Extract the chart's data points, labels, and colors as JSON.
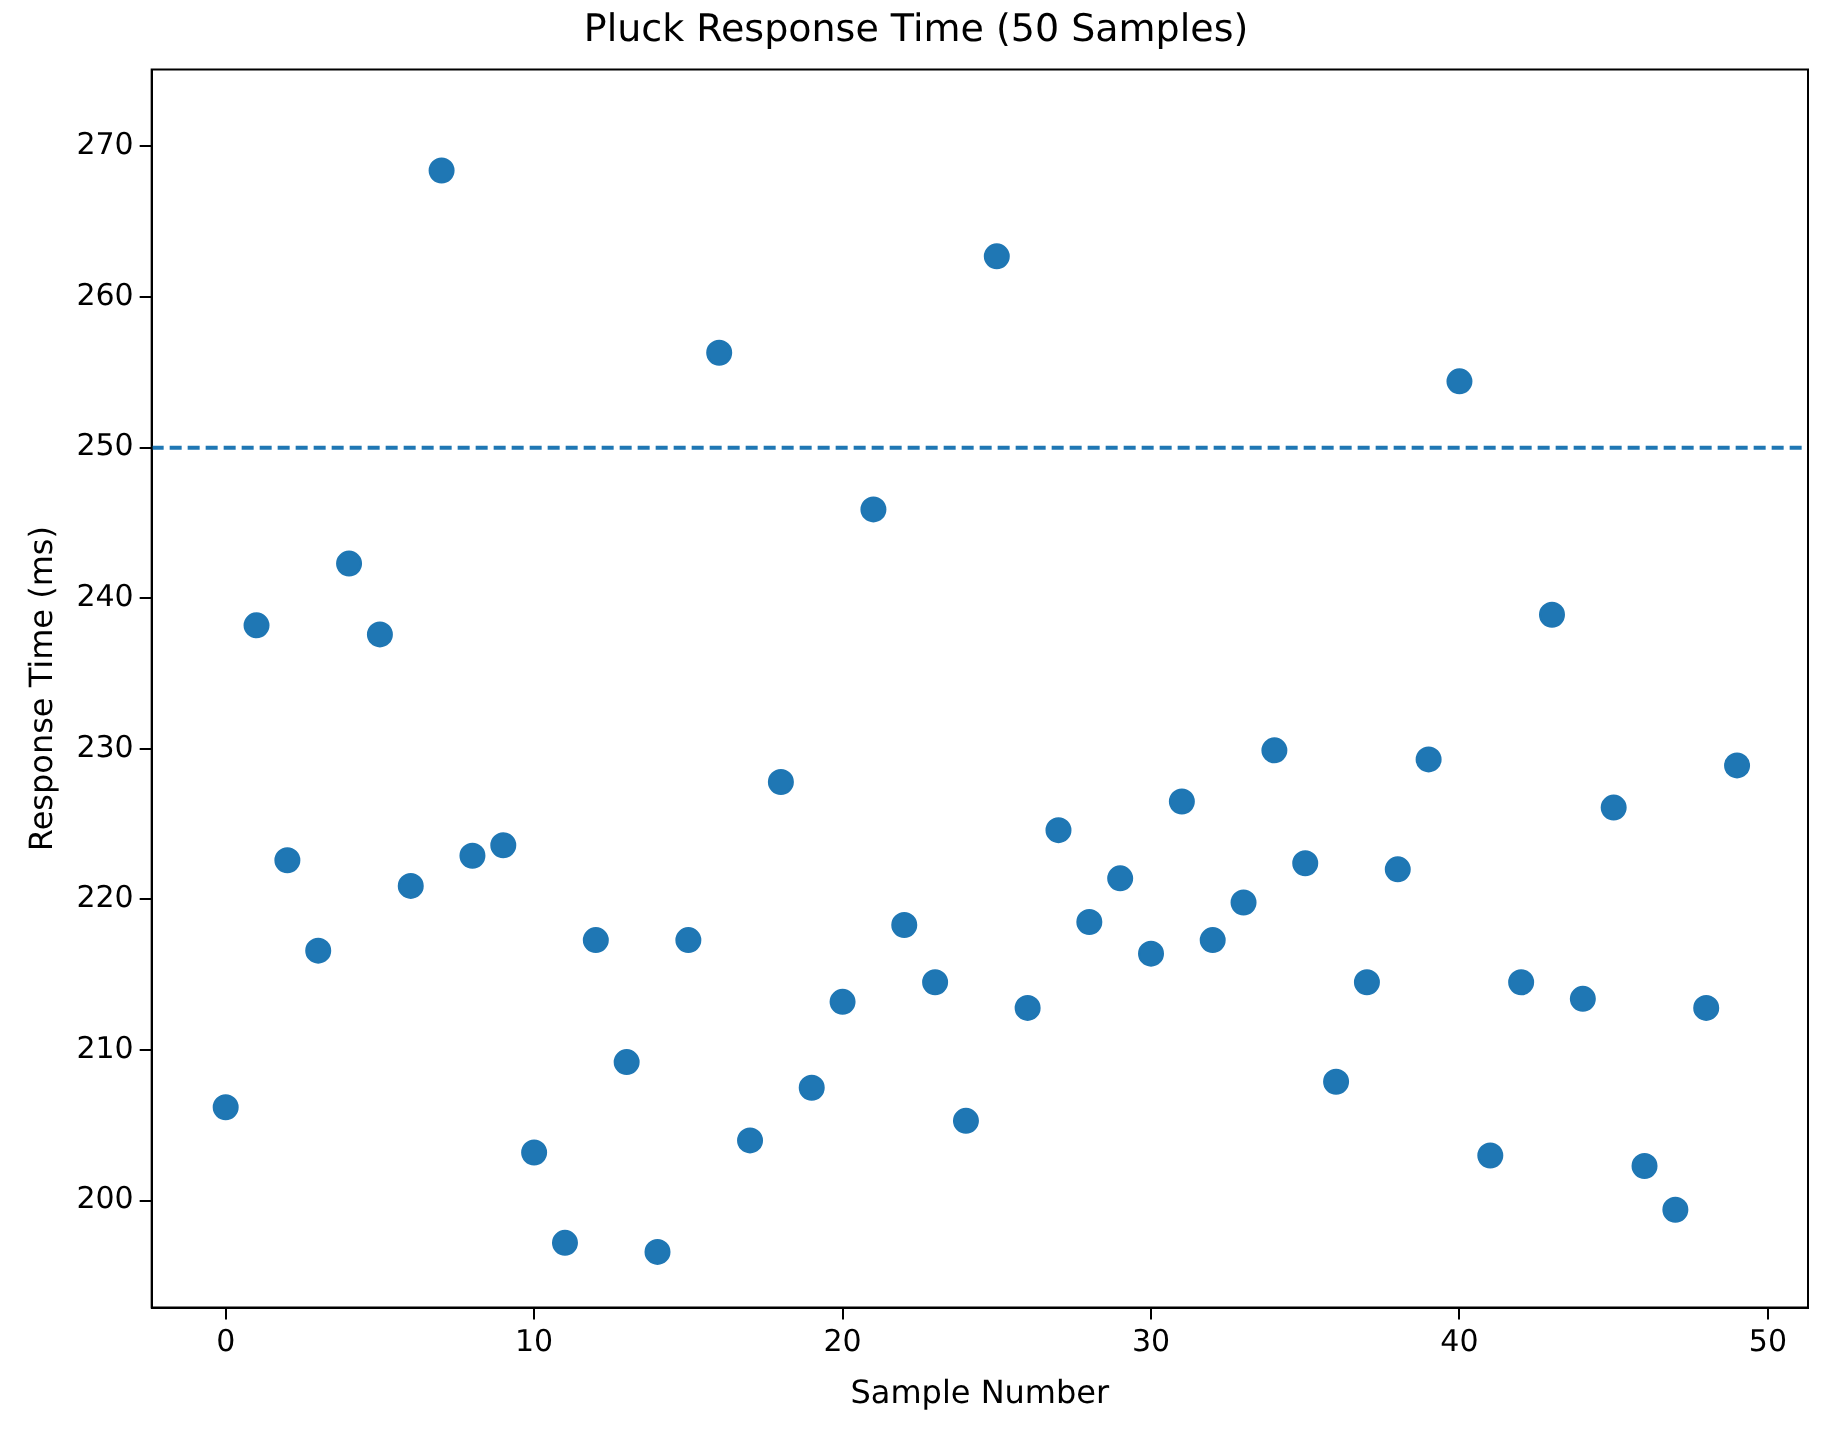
{
  "chart_data": {
    "type": "scatter",
    "title": "Pluck Response Time (50 Samples)",
    "xlabel": "Sample Number",
    "ylabel": "Response Time (ms)",
    "x": [
      0,
      1,
      2,
      3,
      4,
      5,
      6,
      7,
      8,
      9,
      10,
      11,
      12,
      13,
      14,
      15,
      16,
      17,
      18,
      19,
      20,
      21,
      22,
      23,
      24,
      25,
      26,
      27,
      28,
      29,
      30,
      31,
      32,
      33,
      34,
      35,
      36,
      37,
      38,
      39,
      40,
      41,
      42,
      43,
      44,
      45,
      46,
      47,
      48,
      49
    ],
    "series": [
      {
        "color": "#1f77b4",
        "values": [
          206.2,
          238.2,
          222.6,
          216.6,
          242.3,
          237.6,
          220.9,
          268.4,
          222.9,
          223.6,
          203.2,
          197.2,
          217.3,
          209.2,
          196.6,
          217.3,
          256.3,
          204.0,
          227.8,
          207.5,
          213.2,
          245.9,
          218.3,
          214.5,
          205.3,
          262.7,
          212.8,
          224.6,
          218.5,
          221.4,
          216.4,
          226.5,
          217.3,
          219.8,
          229.9,
          222.4,
          207.9,
          214.5,
          222.0,
          229.3,
          254.4,
          203.0,
          214.5,
          238.9,
          213.4,
          226.1,
          202.3,
          199.4,
          212.8,
          228.9
        ]
      }
    ],
    "xlim": [
      -2.4,
      51.3
    ],
    "ylim": [
      192.9,
      275.1
    ],
    "xticks": [
      0,
      10,
      20,
      30,
      40,
      50
    ],
    "yticks": [
      200,
      210,
      220,
      230,
      240,
      250,
      260,
      270
    ],
    "ref_lines": [
      {
        "axis": "y",
        "value": 250,
        "color": "#1f77b4",
        "line_style": "dashed"
      }
    ],
    "marker": "circle",
    "grid": false,
    "legend": false
  }
}
